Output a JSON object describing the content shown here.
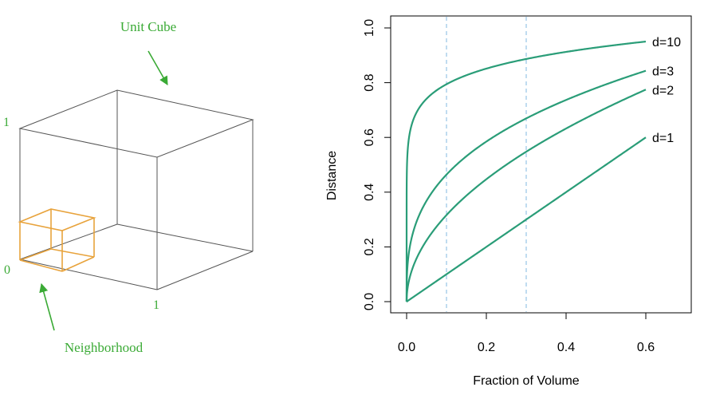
{
  "cube_diagram": {
    "title": "Unit Cube",
    "neighborhood_label": "Neighborhood",
    "axis_label_one_vertical": "1",
    "axis_label_zero": "0",
    "axis_label_one_horizontal": "1",
    "label_color": "#3aaa35",
    "cube_color": "#555555",
    "neighborhood_color": "#e8a33c"
  },
  "chart_data": {
    "type": "line",
    "xlabel": "Fraction of Volume",
    "ylabel": "Distance",
    "xlim": [
      0,
      0.7
    ],
    "ylim": [
      0,
      1.0
    ],
    "x_ticks": [
      "0.0",
      "0.2",
      "0.4",
      "0.6"
    ],
    "y_ticks": [
      "0.0",
      "0.2",
      "0.4",
      "0.6",
      "0.8",
      "1.0"
    ],
    "reference_lines_x": [
      0.1,
      0.3
    ],
    "reference_line_color": "#9ec9e8",
    "line_color": "#2a9d78",
    "series": [
      {
        "name": "d=10",
        "d": 10
      },
      {
        "name": "d=3",
        "d": 3
      },
      {
        "name": "d=2",
        "d": 2
      },
      {
        "name": "d=1",
        "d": 1
      }
    ]
  }
}
